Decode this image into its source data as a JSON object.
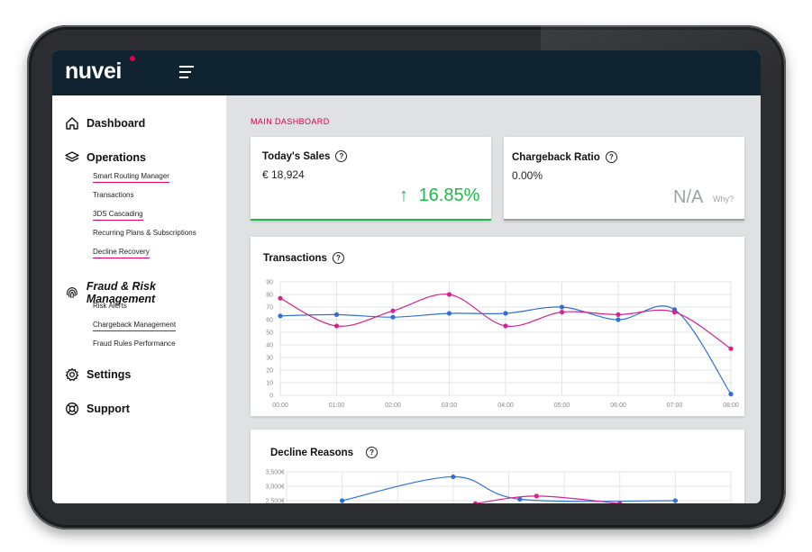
{
  "brand": {
    "logo_text": "nuvei",
    "accent": "#e6004c"
  },
  "sidebar": {
    "sections": [
      {
        "label": "Dashboard",
        "icon": "home-icon"
      },
      {
        "label": "Operations",
        "icon": "layers-icon",
        "items": [
          "Smart Routing Manager",
          "Transactions",
          "3DS Cascading",
          "Recurring Plans & Subscriptions",
          "Decline Recovery"
        ]
      },
      {
        "label": "Fraud & Risk Management",
        "icon": "fingerprint-icon",
        "items": [
          "Risk Alerts",
          "Chargeback Management",
          "Fraud Rules Performance"
        ]
      },
      {
        "label": "Settings",
        "icon": "gear-icon"
      },
      {
        "label": "Support",
        "icon": "lifebuoy-icon"
      }
    ]
  },
  "main": {
    "title": "MAIN DASHBOARD",
    "kpis": {
      "sales": {
        "title": "Today's Sales",
        "value": "€ 18,924",
        "change": "16.85%",
        "arrow": "↑",
        "color": "#1fb74b"
      },
      "chargeback": {
        "title": "Chargeback Ratio",
        "value": "0.00%",
        "na": "N/A",
        "why": "Why?"
      }
    },
    "help_glyph": "?"
  },
  "chart_data": [
    {
      "type": "line",
      "title": "Transactions",
      "x": [
        "00:00",
        "01:00",
        "02:00",
        "03:00",
        "04:00",
        "05:00",
        "06:00",
        "07:00",
        "08:00"
      ],
      "ylim": [
        0,
        90
      ],
      "yticks": [
        0,
        10,
        20,
        30,
        40,
        50,
        60,
        70,
        80,
        90
      ],
      "grid": true,
      "series": [
        {
          "color": "#2f6fd8",
          "values": [
            63,
            64,
            62,
            65,
            65,
            70,
            60,
            68,
            1
          ]
        },
        {
          "color": "#d6228f",
          "values": [
            77,
            55,
            67,
            80,
            55,
            66,
            64,
            66,
            37
          ]
        }
      ]
    },
    {
      "type": "line",
      "title": "Decline Reasons",
      "yticks_labels": [
        "3,500€",
        "3,000€",
        "2,500€"
      ],
      "yticks": [
        3500,
        3000,
        2500
      ],
      "ylim": [
        0,
        3500
      ],
      "grid": true,
      "series": [
        {
          "color": "#2f6fd8",
          "points": [
            [
              1,
              2500
            ],
            [
              3,
              3330
            ],
            [
              4.2,
              2550
            ],
            [
              7,
              2500
            ]
          ]
        },
        {
          "color": "#d6228f",
          "points": [
            [
              3.4,
              2400
            ],
            [
              4.5,
              2660
            ],
            [
              6,
              2400
            ]
          ]
        }
      ]
    }
  ]
}
